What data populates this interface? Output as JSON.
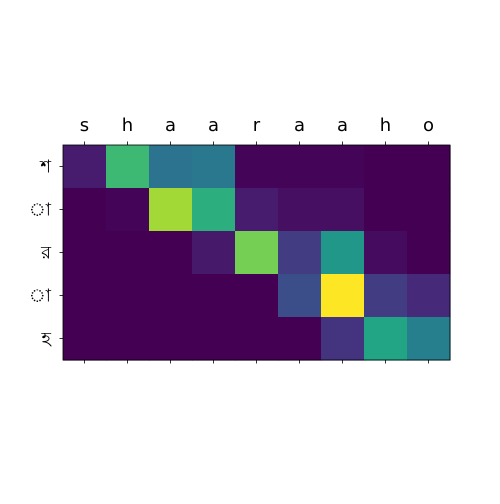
{
  "chart_data": {
    "type": "heatmap",
    "title": "",
    "xlabel": "",
    "ylabel": "",
    "x_categories": [
      "s",
      "h",
      "a",
      "a",
      "r",
      "a",
      "a",
      "h",
      "o"
    ],
    "y_categories": [
      "শ",
      "া",
      "র",
      "া",
      "হ"
    ],
    "x_tick_position": "top",
    "colormap": "viridis",
    "value_range": [
      0,
      1
    ],
    "grid": false,
    "values": [
      [
        0.08,
        0.68,
        0.38,
        0.4,
        0.01,
        0.01,
        0.01,
        0.0,
        0.0
      ],
      [
        0.0,
        0.01,
        0.86,
        0.63,
        0.08,
        0.04,
        0.04,
        0.0,
        0.0
      ],
      [
        0.0,
        0.0,
        0.0,
        0.07,
        0.79,
        0.18,
        0.53,
        0.03,
        0.0
      ],
      [
        0.0,
        0.0,
        0.0,
        0.0,
        0.0,
        0.24,
        1.0,
        0.18,
        0.12
      ],
      [
        0.0,
        0.0,
        0.0,
        0.0,
        0.0,
        0.0,
        0.15,
        0.59,
        0.43
      ]
    ]
  }
}
